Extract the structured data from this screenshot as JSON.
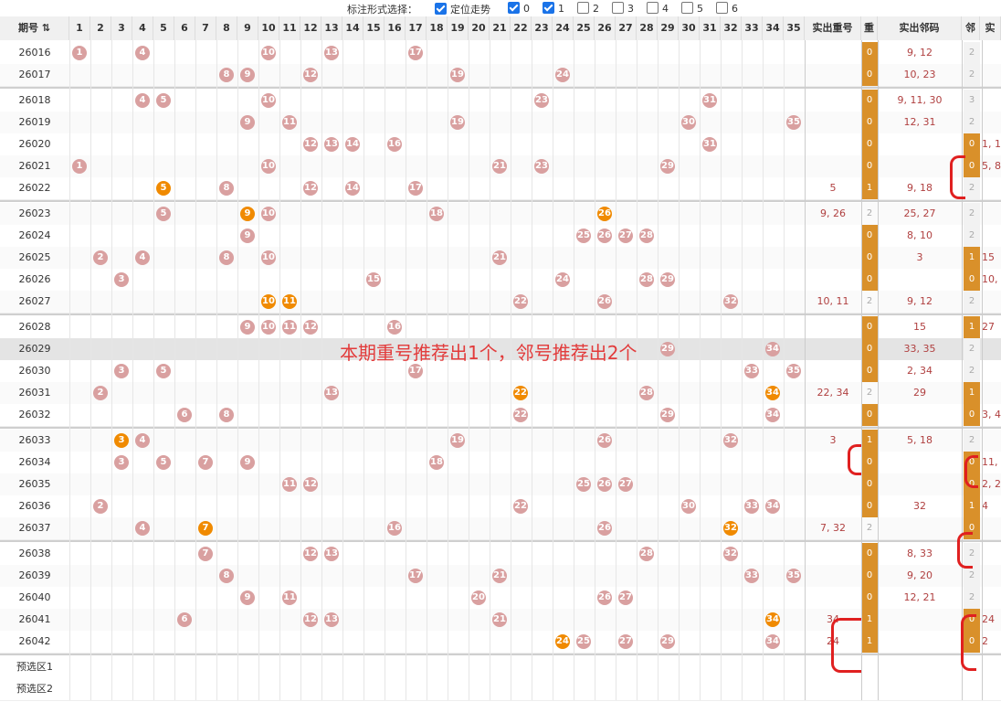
{
  "toolbar": {
    "label": "标注形式选择：",
    "options": [
      {
        "label": "定位走势",
        "checked": true
      },
      {
        "label": "0",
        "checked": true
      },
      {
        "label": "1",
        "checked": true
      },
      {
        "label": "2",
        "checked": false
      },
      {
        "label": "3",
        "checked": false
      },
      {
        "label": "4",
        "checked": false
      },
      {
        "label": "5",
        "checked": false
      },
      {
        "label": "6",
        "checked": false
      }
    ]
  },
  "headers": {
    "period": "期号",
    "repeat_numbers": "实出重号",
    "repeat": "重",
    "neighbor_numbers": "实出邻码",
    "neighbor": "邻",
    "cut": "实"
  },
  "numbers": [
    "1",
    "2",
    "3",
    "4",
    "5",
    "6",
    "7",
    "8",
    "9",
    "10",
    "11",
    "12",
    "13",
    "14",
    "15",
    "16",
    "17",
    "18",
    "19",
    "20",
    "21",
    "22",
    "23",
    "24",
    "25",
    "26",
    "27",
    "28",
    "29",
    "30",
    "31",
    "32",
    "33",
    "34",
    "35"
  ],
  "banner": "本期重号推荐出1个，邻号推荐出2个",
  "rows": [
    {
      "period": "26016",
      "balls": [
        1,
        4,
        10,
        13,
        17
      ],
      "hot": [],
      "repeat_nums": "",
      "repeat": "0",
      "neighbor_nums": "9, 12",
      "neighbor": "2",
      "neighbor_hot": false,
      "extra": ""
    },
    {
      "period": "26017",
      "balls": [
        8,
        9,
        12,
        19,
        24
      ],
      "hot": [],
      "repeat_nums": "",
      "repeat": "0",
      "neighbor_nums": "10, 23",
      "neighbor": "2",
      "neighbor_hot": false,
      "extra": ""
    },
    {
      "period": "26018",
      "balls": [
        4,
        5,
        10,
        23,
        31
      ],
      "hot": [],
      "repeat_nums": "",
      "repeat": "0",
      "neighbor_nums": "9, 11, 30",
      "neighbor": "3",
      "neighbor_hot": false,
      "extra": ""
    },
    {
      "period": "26019",
      "balls": [
        9,
        11,
        19,
        30,
        35
      ],
      "hot": [],
      "repeat_nums": "",
      "repeat": "0",
      "neighbor_nums": "12, 31",
      "neighbor": "2",
      "neighbor_hot": false,
      "extra": ""
    },
    {
      "period": "26020",
      "balls": [
        12,
        13,
        14,
        16,
        31
      ],
      "hot": [],
      "repeat_nums": "",
      "repeat": "0",
      "neighbor_nums": "",
      "neighbor": "0",
      "neighbor_hot": true,
      "extra": "1, 1"
    },
    {
      "period": "26021",
      "balls": [
        1,
        10,
        21,
        23,
        29
      ],
      "hot": [],
      "repeat_nums": "",
      "repeat": "0",
      "neighbor_nums": "",
      "neighbor": "0",
      "neighbor_hot": true,
      "extra": "5, 8"
    },
    {
      "period": "26022",
      "balls": [
        5,
        8,
        12,
        14,
        17
      ],
      "hot": [
        5
      ],
      "repeat_nums": "5",
      "repeat": "1",
      "neighbor_nums": "9, 18",
      "neighbor": "2",
      "neighbor_hot": false,
      "extra": ""
    },
    {
      "period": "26023",
      "balls": [
        5,
        9,
        10,
        18,
        26
      ],
      "hot": [
        9,
        26
      ],
      "repeat_nums": "9, 26",
      "repeat": "2",
      "neighbor_nums": "25, 27",
      "neighbor": "2",
      "neighbor_hot": false,
      "extra": ""
    },
    {
      "period": "26024",
      "balls": [
        9,
        25,
        26,
        27,
        28
      ],
      "hot": [],
      "repeat_nums": "",
      "repeat": "0",
      "neighbor_nums": "8, 10",
      "neighbor": "2",
      "neighbor_hot": false,
      "extra": ""
    },
    {
      "period": "26025",
      "balls": [
        2,
        4,
        8,
        10,
        21
      ],
      "hot": [],
      "repeat_nums": "",
      "repeat": "0",
      "neighbor_nums": "3",
      "neighbor": "1",
      "neighbor_hot": true,
      "extra": "15"
    },
    {
      "period": "26026",
      "balls": [
        3,
        15,
        24,
        28,
        29
      ],
      "hot": [],
      "repeat_nums": "",
      "repeat": "0",
      "neighbor_nums": "",
      "neighbor": "0",
      "neighbor_hot": true,
      "extra": "10,"
    },
    {
      "period": "26027",
      "balls": [
        10,
        11,
        22,
        26,
        32
      ],
      "hot": [
        10,
        11
      ],
      "repeat_nums": "10, 11",
      "repeat": "2",
      "neighbor_nums": "9, 12",
      "neighbor": "2",
      "neighbor_hot": false,
      "extra": ""
    },
    {
      "period": "26028",
      "balls": [
        9,
        10,
        11,
        12,
        16
      ],
      "hot": [],
      "repeat_nums": "",
      "repeat": "0",
      "neighbor_nums": "15",
      "neighbor": "1",
      "neighbor_hot": true,
      "extra": "27"
    },
    {
      "period": "26029",
      "balls": [
        29,
        34
      ],
      "hot": [],
      "repeat_nums": "",
      "repeat": "0",
      "neighbor_nums": "33, 35",
      "neighbor": "2",
      "neighbor_hot": false,
      "extra": ""
    },
    {
      "period": "26030",
      "balls": [
        3,
        5,
        17,
        33,
        35
      ],
      "hot": [],
      "repeat_nums": "",
      "repeat": "0",
      "neighbor_nums": "2, 34",
      "neighbor": "2",
      "neighbor_hot": false,
      "extra": ""
    },
    {
      "period": "26031",
      "balls": [
        2,
        13,
        22,
        28,
        34
      ],
      "hot": [
        22,
        34
      ],
      "repeat_nums": "22, 34",
      "repeat": "2",
      "neighbor_nums": "29",
      "neighbor": "1",
      "neighbor_hot": true,
      "extra": ""
    },
    {
      "period": "26032",
      "balls": [
        6,
        8,
        22,
        29,
        34
      ],
      "hot": [],
      "repeat_nums": "",
      "repeat": "0",
      "neighbor_nums": "",
      "neighbor": "0",
      "neighbor_hot": true,
      "extra": "3, 4"
    },
    {
      "period": "26033",
      "balls": [
        3,
        4,
        19,
        26,
        32
      ],
      "hot": [
        3
      ],
      "repeat_nums": "3",
      "repeat": "1",
      "neighbor_nums": "5, 18",
      "neighbor": "2",
      "neighbor_hot": false,
      "extra": ""
    },
    {
      "period": "26034",
      "balls": [
        3,
        5,
        7,
        9,
        18
      ],
      "hot": [],
      "repeat_nums": "",
      "repeat": "0",
      "neighbor_nums": "",
      "neighbor": "0",
      "neighbor_hot": true,
      "extra": "11,"
    },
    {
      "period": "26035",
      "balls": [
        11,
        12,
        25,
        26,
        27
      ],
      "hot": [],
      "repeat_nums": "",
      "repeat": "0",
      "neighbor_nums": "",
      "neighbor": "0",
      "neighbor_hot": true,
      "extra": "2, 2"
    },
    {
      "period": "26036",
      "balls": [
        2,
        22,
        30,
        33,
        34
      ],
      "hot": [],
      "repeat_nums": "",
      "repeat": "0",
      "neighbor_nums": "32",
      "neighbor": "1",
      "neighbor_hot": true,
      "extra": "4"
    },
    {
      "period": "26037",
      "balls": [
        4,
        7,
        16,
        26,
        32
      ],
      "hot": [
        7,
        32
      ],
      "repeat_nums": "7, 32",
      "repeat": "2",
      "neighbor_nums": "",
      "neighbor": "0",
      "neighbor_hot": true,
      "extra": ""
    },
    {
      "period": "26038",
      "balls": [
        7,
        12,
        13,
        28,
        32
      ],
      "hot": [],
      "repeat_nums": "",
      "repeat": "0",
      "neighbor_nums": "8, 33",
      "neighbor": "2",
      "neighbor_hot": false,
      "extra": ""
    },
    {
      "period": "26039",
      "balls": [
        8,
        17,
        21,
        33,
        35
      ],
      "hot": [],
      "repeat_nums": "",
      "repeat": "0",
      "neighbor_nums": "9, 20",
      "neighbor": "2",
      "neighbor_hot": false,
      "extra": ""
    },
    {
      "period": "26040",
      "balls": [
        9,
        11,
        20,
        26,
        27
      ],
      "hot": [],
      "repeat_nums": "",
      "repeat": "0",
      "neighbor_nums": "12, 21",
      "neighbor": "2",
      "neighbor_hot": false,
      "extra": ""
    },
    {
      "period": "26041",
      "balls": [
        6,
        12,
        13,
        21,
        34
      ],
      "hot": [
        34
      ],
      "repeat_nums": "34",
      "repeat": "1",
      "neighbor_nums": "",
      "neighbor": "0",
      "neighbor_hot": true,
      "extra": "24"
    },
    {
      "period": "26042",
      "balls": [
        24,
        25,
        27,
        29,
        34
      ],
      "hot": [
        24
      ],
      "repeat_nums": "24",
      "repeat": "1",
      "neighbor_nums": "",
      "neighbor": "0",
      "neighbor_hot": true,
      "extra": "2"
    }
  ],
  "preselect": [
    "预选区1",
    "预选区2"
  ]
}
